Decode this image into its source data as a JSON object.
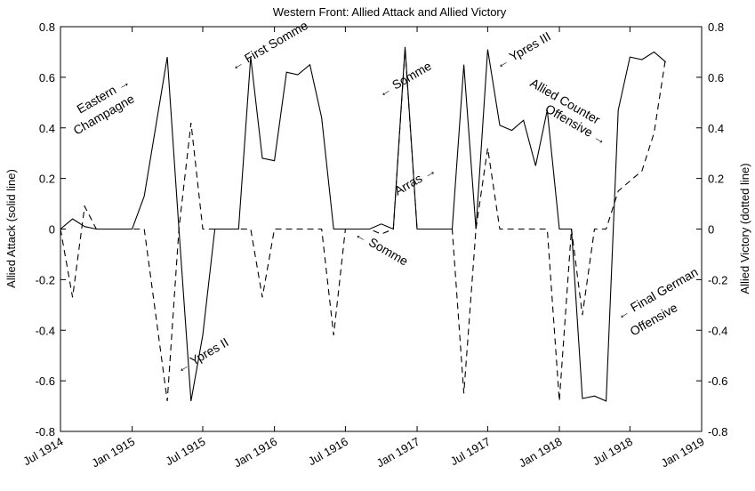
{
  "chart_data": {
    "type": "line",
    "title": "Western Front:  Allied Attack and Allied Victory",
    "ylabel_left": "Allied Attack (solid line)",
    "ylabel_right": "Allied Victory (dotted line)",
    "xlim": [
      "1914-07-01",
      "1919-01-01"
    ],
    "ylim": [
      -0.8,
      0.8
    ],
    "y_ticks": [
      -0.8,
      -0.6,
      -0.4,
      -0.2,
      0,
      0.2,
      0.4,
      0.6,
      0.8
    ],
    "y_tick_labels": [
      "-0.8",
      "-0.6",
      "-0.4",
      "-0.2",
      "0",
      "0.2",
      "0.4",
      "0.6",
      "0.8"
    ],
    "x_ticks": [
      "1914-07-01",
      "1915-01-01",
      "1915-07-01",
      "1916-01-01",
      "1916-07-01",
      "1917-01-01",
      "1917-07-01",
      "1918-01-01",
      "1918-07-01",
      "1919-01-01"
    ],
    "x_tick_labels": [
      "Jul 1914",
      "Jan 1915",
      "Jul 1915",
      "Jan 1916",
      "Jul 1916",
      "Jan 1917",
      "Jul 1917",
      "Jan 1918",
      "Jul 1918",
      "Jan 1919"
    ],
    "grid": false,
    "series": [
      {
        "style": "solid",
        "color": "#000000",
        "points": [
          [
            "1914-07-01",
            0.0
          ],
          [
            "1914-08-01",
            0.04
          ],
          [
            "1914-09-01",
            0.01
          ],
          [
            "1914-10-01",
            0.0
          ],
          [
            "1914-12-01",
            0.0
          ],
          [
            "1915-01-01",
            0.0
          ],
          [
            "1915-02-01",
            0.13
          ],
          [
            "1915-04-01",
            0.68
          ],
          [
            "1915-05-01",
            0.0
          ],
          [
            "1915-06-01",
            -0.68
          ],
          [
            "1915-07-01",
            -0.42
          ],
          [
            "1915-08-01",
            0.0
          ],
          [
            "1915-10-01",
            0.0
          ],
          [
            "1915-11-01",
            0.68
          ],
          [
            "1915-12-01",
            0.28
          ],
          [
            "1916-01-01",
            0.27
          ],
          [
            "1916-02-01",
            0.62
          ],
          [
            "1916-03-01",
            0.61
          ],
          [
            "1916-04-01",
            0.65
          ],
          [
            "1916-05-01",
            0.44
          ],
          [
            "1916-06-01",
            0.0
          ],
          [
            "1916-09-01",
            0.0
          ],
          [
            "1916-10-01",
            0.02
          ],
          [
            "1916-11-01",
            0.0
          ],
          [
            "1916-12-01",
            0.72
          ],
          [
            "1917-01-01",
            0.0
          ],
          [
            "1917-04-01",
            0.0
          ],
          [
            "1917-05-01",
            0.65
          ],
          [
            "1917-06-01",
            0.0
          ],
          [
            "1917-07-01",
            0.71
          ],
          [
            "1917-08-01",
            0.41
          ],
          [
            "1917-09-01",
            0.39
          ],
          [
            "1917-10-01",
            0.43
          ],
          [
            "1917-11-01",
            0.25
          ],
          [
            "1917-12-01",
            0.47
          ],
          [
            "1918-01-01",
            0.0
          ],
          [
            "1918-02-01",
            0.0
          ],
          [
            "1918-03-01",
            -0.67
          ],
          [
            "1918-04-01",
            -0.66
          ],
          [
            "1918-05-01",
            -0.68
          ],
          [
            "1918-06-01",
            0.47
          ],
          [
            "1918-07-01",
            0.68
          ],
          [
            "1918-08-01",
            0.67
          ],
          [
            "1918-09-01",
            0.7
          ],
          [
            "1918-10-01",
            0.66
          ]
        ]
      },
      {
        "style": "dashed",
        "color": "#000000",
        "points": [
          [
            "1914-07-01",
            0.0
          ],
          [
            "1914-08-01",
            -0.27
          ],
          [
            "1914-09-01",
            0.09
          ],
          [
            "1914-10-01",
            0.0
          ],
          [
            "1915-01-01",
            0.0
          ],
          [
            "1915-02-01",
            0.0
          ],
          [
            "1915-04-01",
            -0.68
          ],
          [
            "1915-05-01",
            0.0
          ],
          [
            "1915-06-01",
            0.42
          ],
          [
            "1915-07-01",
            0.0
          ],
          [
            "1915-10-01",
            0.0
          ],
          [
            "1915-11-01",
            0.0
          ],
          [
            "1915-12-01",
            -0.27
          ],
          [
            "1916-01-01",
            0.0
          ],
          [
            "1916-05-01",
            0.0
          ],
          [
            "1916-06-01",
            -0.42
          ],
          [
            "1916-07-01",
            0.0
          ],
          [
            "1916-09-01",
            0.0
          ],
          [
            "1916-10-01",
            -0.02
          ],
          [
            "1916-11-01",
            0.0
          ],
          [
            "1916-12-01",
            0.71
          ],
          [
            "1917-01-01",
            0.0
          ],
          [
            "1917-04-01",
            0.0
          ],
          [
            "1917-05-01",
            -0.65
          ],
          [
            "1917-06-01",
            0.0
          ],
          [
            "1917-07-01",
            0.32
          ],
          [
            "1917-08-01",
            0.0
          ],
          [
            "1917-12-01",
            0.0
          ],
          [
            "1918-01-01",
            -0.68
          ],
          [
            "1918-02-01",
            0.0
          ],
          [
            "1918-03-01",
            -0.34
          ],
          [
            "1918-04-01",
            0.0
          ],
          [
            "1918-05-01",
            0.0
          ],
          [
            "1918-06-01",
            0.15
          ],
          [
            "1918-07-01",
            0.19
          ],
          [
            "1918-08-01",
            0.23
          ],
          [
            "1918-09-01",
            0.38
          ],
          [
            "1918-10-01",
            0.68
          ]
        ]
      }
    ],
    "annotations": [
      {
        "text": "Eastern →",
        "anchor": "left"
      },
      {
        "text": "Champagne",
        "anchor": "left"
      },
      {
        "text": "← Ypres II",
        "anchor": "center"
      },
      {
        "text": "← First Somme",
        "anchor": "center"
      },
      {
        "text": "← Somme",
        "anchor": "center"
      },
      {
        "text": "← Somme",
        "anchor": "center"
      },
      {
        "text": "Arras →",
        "anchor": "center"
      },
      {
        "text": "← Ypres III",
        "anchor": "center"
      },
      {
        "text": "Allied Counter",
        "anchor": "center"
      },
      {
        "text": "Offensive →",
        "anchor": "center"
      },
      {
        "text": "← Final German",
        "anchor": "center"
      },
      {
        "text": "Offensive",
        "anchor": "center"
      }
    ]
  }
}
